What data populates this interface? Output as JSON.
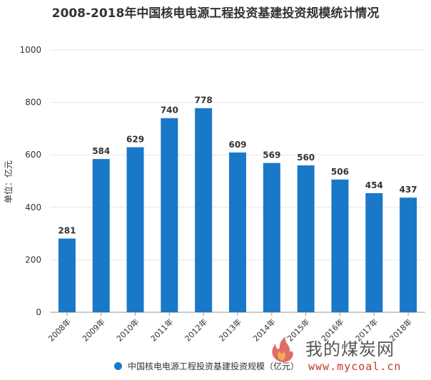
{
  "chart_data": {
    "type": "bar",
    "title": "2008-2018年中国核电电源工程投资基建投资规模统计情况",
    "ylabel": "单位：亿元",
    "xlabel": "",
    "categories": [
      "2008年",
      "2009年",
      "2010年",
      "2011年",
      "2012年",
      "2013年",
      "2014年",
      "2015年",
      "2016年",
      "2017年",
      "2018年"
    ],
    "values": [
      281,
      584,
      629,
      740,
      778,
      609,
      569,
      560,
      506,
      454,
      437
    ],
    "series_name": "中国核电电源工程投资基建投资规模（亿元）",
    "ylim": [
      0,
      1000
    ],
    "yticks": [
      0,
      200,
      400,
      600,
      800,
      1000
    ],
    "grid": true,
    "legend_position": "bottom",
    "colors": {
      "bar": "#1a78c8",
      "grid": "#e6e6e6",
      "axis": "#999999",
      "text": "#333333"
    }
  },
  "watermark": {
    "brand_cn": "我的煤炭网",
    "url": "www.mycoal.cn"
  }
}
